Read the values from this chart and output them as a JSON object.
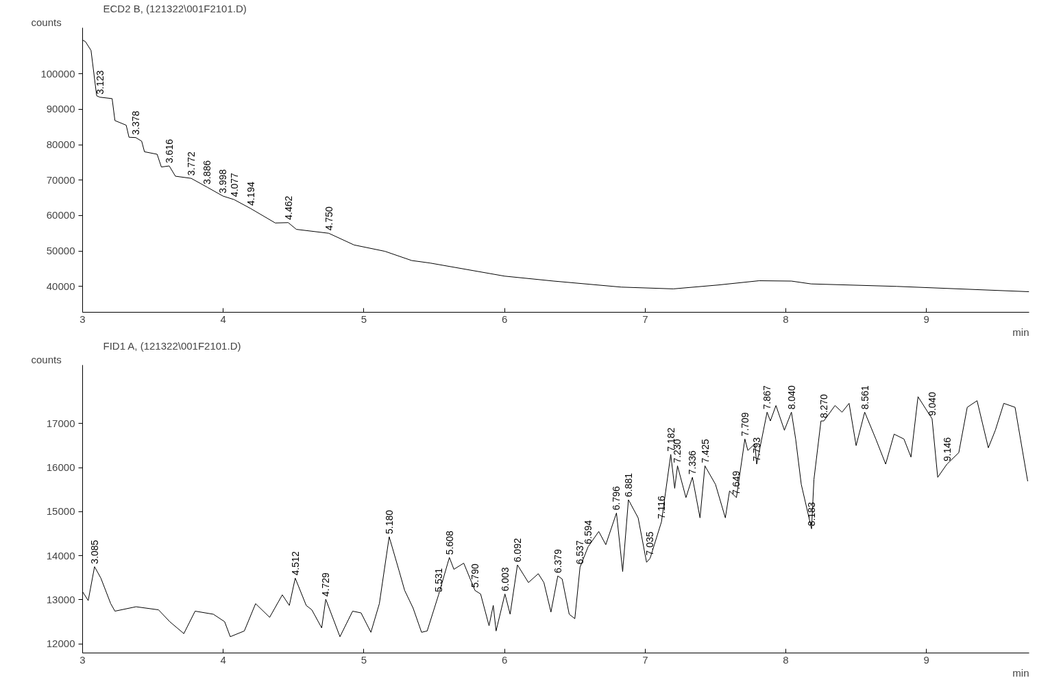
{
  "chart_data": [
    {
      "type": "line",
      "title": "ECD2 B,  (121322\\001F2101.D)",
      "xlabel": "min",
      "ylabel": "counts",
      "xlim": [
        3,
        9.73
      ],
      "xticks": [
        3,
        4,
        5,
        6,
        7,
        8,
        9
      ],
      "ylim": [
        32700,
        113000
      ],
      "yticks": [
        40000,
        50000,
        60000,
        70000,
        80000,
        90000,
        100000
      ],
      "series": [
        {
          "color": "#000000",
          "x": [
            3.0,
            3.02,
            3.06,
            3.1,
            3.123,
            3.21,
            3.23,
            3.31,
            3.33,
            3.378,
            3.42,
            3.44,
            3.53,
            3.56,
            3.616,
            3.66,
            3.772,
            3.886,
            3.998,
            4.077,
            4.194,
            4.37,
            4.462,
            4.52,
            4.75,
            4.93,
            5.15,
            5.34,
            5.47,
            6.0,
            6.35,
            6.83,
            7.2,
            7.52,
            7.81,
            8.04,
            8.18,
            8.79,
            9.73
          ],
          "values": [
            109500,
            109100,
            106600,
            93800,
            93400,
            93000,
            86800,
            85500,
            82100,
            82000,
            81000,
            78000,
            77300,
            73700,
            74000,
            71100,
            70500,
            68000,
            65500,
            64500,
            62000,
            57900,
            58000,
            56100,
            55000,
            51700,
            49900,
            47300,
            46600,
            42900,
            41500,
            39800,
            39300,
            40400,
            41600,
            41500,
            40700,
            40000,
            38500
          ]
        }
      ],
      "annotations": [
        {
          "text": "3.123",
          "x": 3.123,
          "y": 93400
        },
        {
          "text": "3.378",
          "x": 3.378,
          "y": 82000
        },
        {
          "text": "3.616",
          "x": 3.616,
          "y": 74000
        },
        {
          "text": "3.772",
          "x": 3.772,
          "y": 70500
        },
        {
          "text": "3.886",
          "x": 3.886,
          "y": 68000
        },
        {
          "text": "3.998",
          "x": 3.998,
          "y": 65500
        },
        {
          "text": "4.077",
          "x": 4.077,
          "y": 64500
        },
        {
          "text": "4.194",
          "x": 4.194,
          "y": 62000
        },
        {
          "text": "4.462",
          "x": 4.462,
          "y": 58000
        },
        {
          "text": "4.750",
          "x": 4.75,
          "y": 55000
        }
      ]
    },
    {
      "type": "line",
      "title": "FID1 A,  (121322\\001F2101.D)",
      "xlabel": "min",
      "ylabel": "counts",
      "xlim": [
        3,
        9.73
      ],
      "xticks": [
        3,
        4,
        5,
        6,
        7,
        8,
        9
      ],
      "ylim": [
        11790,
        18330
      ],
      "yticks": [
        12000,
        13000,
        14000,
        15000,
        16000,
        17000
      ],
      "series": [
        {
          "color": "#000000",
          "x": [
            3.0,
            3.04,
            3.085,
            3.13,
            3.2,
            3.23,
            3.38,
            3.54,
            3.62,
            3.72,
            3.8,
            3.93,
            4.01,
            4.05,
            4.15,
            4.23,
            4.33,
            4.42,
            4.47,
            4.512,
            4.59,
            4.63,
            4.7,
            4.729,
            4.83,
            4.92,
            4.98,
            5.05,
            5.11,
            5.18,
            5.25,
            5.29,
            5.35,
            5.41,
            5.45,
            5.531,
            5.608,
            5.64,
            5.71,
            5.79,
            5.83,
            5.89,
            5.92,
            5.94,
            6.003,
            6.04,
            6.092,
            6.17,
            6.24,
            6.28,
            6.33,
            6.379,
            6.41,
            6.46,
            6.5,
            6.537,
            6.594,
            6.67,
            6.72,
            6.796,
            6.84,
            6.881,
            6.95,
            7.01,
            7.035,
            7.116,
            7.182,
            7.21,
            7.23,
            7.29,
            7.336,
            7.39,
            7.425,
            7.5,
            7.57,
            7.6,
            7.649,
            7.709,
            7.73,
            7.78,
            7.793,
            7.867,
            7.89,
            7.93,
            7.99,
            8.04,
            8.07,
            8.11,
            8.183,
            8.2,
            8.25,
            8.27,
            8.35,
            8.4,
            8.45,
            8.5,
            8.561,
            8.64,
            8.71,
            8.77,
            8.84,
            8.89,
            8.94,
            9.04,
            9.08,
            9.146,
            9.23,
            9.29,
            9.36,
            9.44,
            9.49,
            9.55,
            9.63,
            9.72
          ],
          "values": [
            13180,
            12980,
            13750,
            13490,
            12910,
            12740,
            12840,
            12770,
            12500,
            12230,
            12740,
            12670,
            12500,
            12160,
            12290,
            12910,
            12600,
            13110,
            12870,
            13490,
            12870,
            12770,
            12360,
            13010,
            12160,
            12740,
            12700,
            12260,
            12910,
            14430,
            13660,
            13210,
            12810,
            12260,
            12290,
            13110,
            13960,
            13690,
            13830,
            13210,
            13130,
            12410,
            12870,
            12290,
            13130,
            12670,
            13790,
            13390,
            13590,
            13390,
            12720,
            13540,
            13470,
            12670,
            12570,
            13740,
            14200,
            14550,
            14250,
            14970,
            13640,
            15270,
            14860,
            13850,
            13940,
            14770,
            16300,
            15530,
            16040,
            15320,
            15780,
            14860,
            16040,
            15620,
            14860,
            15470,
            15320,
            16650,
            16390,
            16540,
            16080,
            17260,
            17060,
            17410,
            16850,
            17260,
            16650,
            15620,
            14610,
            15730,
            17060,
            17060,
            17410,
            17260,
            17460,
            16500,
            17260,
            16650,
            16080,
            16760,
            16650,
            16240,
            17610,
            17110,
            15780,
            16080,
            16340,
            17370,
            17520,
            16450,
            16850,
            17460,
            17370,
            15690
          ]
        }
      ],
      "annotations": [
        {
          "text": "3.085",
          "x": 3.085,
          "y": 13750
        },
        {
          "text": "4.512",
          "x": 4.512,
          "y": 13490
        },
        {
          "text": "4.729",
          "x": 4.729,
          "y": 13010
        },
        {
          "text": "5.180",
          "x": 5.18,
          "y": 14430
        },
        {
          "text": "5.531",
          "x": 5.531,
          "y": 13110
        },
        {
          "text": "5.608",
          "x": 5.608,
          "y": 13960
        },
        {
          "text": "5.790",
          "x": 5.79,
          "y": 13210
        },
        {
          "text": "6.003",
          "x": 6.003,
          "y": 13130
        },
        {
          "text": "6.092",
          "x": 6.092,
          "y": 13790
        },
        {
          "text": "6.379",
          "x": 6.379,
          "y": 13540
        },
        {
          "text": "6.537",
          "x": 6.537,
          "y": 13740
        },
        {
          "text": "6.594",
          "x": 6.594,
          "y": 14200
        },
        {
          "text": "6.796",
          "x": 6.796,
          "y": 14970
        },
        {
          "text": "6.881",
          "x": 6.881,
          "y": 15270
        },
        {
          "text": "7.035",
          "x": 7.035,
          "y": 13940
        },
        {
          "text": "7.116",
          "x": 7.116,
          "y": 14770
        },
        {
          "text": "7.182",
          "x": 7.182,
          "y": 16300
        },
        {
          "text": "7.230",
          "x": 7.23,
          "y": 16040
        },
        {
          "text": "7.336",
          "x": 7.336,
          "y": 15780
        },
        {
          "text": "7.425",
          "x": 7.425,
          "y": 16040
        },
        {
          "text": "7.649",
          "x": 7.649,
          "y": 15320
        },
        {
          "text": "7.709",
          "x": 7.709,
          "y": 16650
        },
        {
          "text": "7.793",
          "x": 7.793,
          "y": 16080
        },
        {
          "text": "7.867",
          "x": 7.867,
          "y": 17260
        },
        {
          "text": "8.040",
          "x": 8.04,
          "y": 17260
        },
        {
          "text": "8.183",
          "x": 8.183,
          "y": 14610
        },
        {
          "text": "8.270",
          "x": 8.27,
          "y": 17060
        },
        {
          "text": "8.561",
          "x": 8.561,
          "y": 17260
        },
        {
          "text": "9.040",
          "x": 9.04,
          "y": 17110
        },
        {
          "text": "9.146",
          "x": 9.146,
          "y": 16080
        }
      ]
    }
  ]
}
